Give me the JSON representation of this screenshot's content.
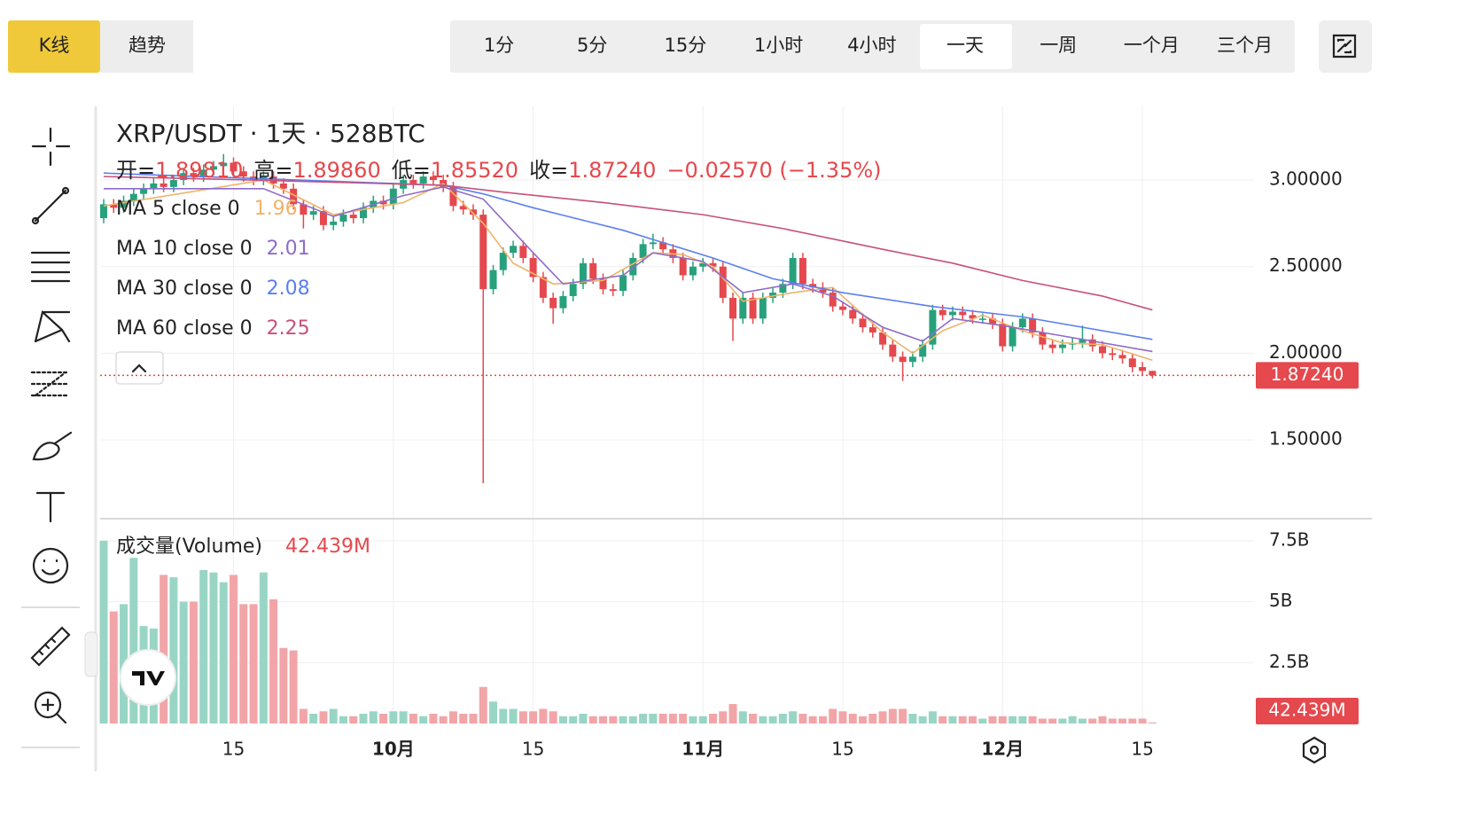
{
  "toolbar": {
    "tabs": [
      "K线",
      "趋势"
    ],
    "intervals": [
      "1分",
      "5分",
      "15分",
      "1小时",
      "4小时",
      "一天",
      "一周",
      "一个月",
      "三个月"
    ]
  },
  "chart_data": [
    {
      "type": "candlestick",
      "title": "XRP/USDT · 1天 · 528BTC",
      "stats": [
        {
          "name": "开=",
          "text": "1.89810"
        },
        {
          "name": "高=",
          "text": "1.89860"
        },
        {
          "name": "低=",
          "text": "1.85520"
        },
        {
          "name": "收=",
          "text": "1.87240"
        }
      ],
      "change": "−0.02570 (−1.35%)",
      "last_price": {
        "value": 1.8724,
        "label": "1.87240"
      },
      "up_color": "#27a17c",
      "down_color": "#e5484d",
      "categories": [
        null,
        null,
        null,
        null,
        null,
        null,
        null,
        null,
        null,
        null,
        null,
        null,
        null,
        "15",
        null,
        null,
        null,
        null,
        null,
        null,
        null,
        null,
        null,
        null,
        null,
        null,
        null,
        null,
        null,
        "10月",
        null,
        null,
        null,
        null,
        null,
        null,
        null,
        null,
        null,
        null,
        null,
        null,
        null,
        "15",
        null,
        null,
        null,
        null,
        null,
        null,
        null,
        null,
        null,
        null,
        null,
        null,
        null,
        null,
        null,
        null,
        "11月",
        null,
        null,
        null,
        null,
        null,
        null,
        null,
        null,
        null,
        null,
        null,
        null,
        null,
        "15",
        null,
        null,
        null,
        null,
        null,
        null,
        null,
        null,
        null,
        null,
        null,
        null,
        null,
        null,
        null,
        "12月",
        null,
        null,
        null,
        null,
        null,
        null,
        null,
        null,
        null,
        null,
        null,
        null,
        null,
        "15",
        null
      ],
      "open": [
        2.78,
        2.86,
        2.84,
        2.88,
        2.92,
        2.95,
        2.98,
        2.96,
        3.0,
        3.04,
        3.02,
        3.06,
        3.08,
        3.1,
        3.05,
        3.02,
        3.0,
        3.02,
        2.98,
        2.95,
        2.86,
        2.8,
        2.82,
        2.74,
        2.76,
        2.8,
        2.78,
        2.84,
        2.88,
        2.86,
        2.95,
        3.0,
        2.98,
        3.02,
        3.0,
        2.96,
        2.85,
        2.83,
        2.8,
        2.37,
        2.48,
        2.58,
        2.62,
        2.55,
        2.44,
        2.32,
        2.26,
        2.33,
        2.4,
        2.52,
        2.43,
        2.37,
        2.36,
        2.45,
        2.55,
        2.63,
        2.64,
        2.6,
        2.55,
        2.45,
        2.5,
        2.52,
        2.5,
        2.32,
        2.2,
        2.32,
        2.2,
        2.32,
        2.35,
        2.4,
        2.55,
        2.4,
        2.38,
        2.35,
        2.27,
        2.25,
        2.2,
        2.15,
        2.12,
        2.05,
        1.98,
        1.95,
        1.98,
        2.05,
        2.25,
        2.22,
        2.24,
        2.22,
        2.2,
        2.2,
        2.17,
        2.04,
        2.15,
        2.2,
        2.12,
        2.05,
        2.03,
        2.05,
        2.06,
        2.08,
        2.04,
        2.0,
        1.99,
        1.97,
        1.92,
        1.8981
      ],
      "high": [
        2.89,
        2.89,
        2.91,
        2.95,
        2.98,
        3.01,
        3.01,
        3.03,
        3.07,
        3.07,
        3.09,
        3.11,
        3.15,
        3.13,
        3.08,
        3.05,
        3.05,
        3.05,
        3.01,
        2.98,
        2.89,
        2.85,
        2.85,
        2.79,
        2.83,
        2.83,
        2.87,
        2.91,
        2.91,
        2.98,
        3.03,
        3.03,
        3.05,
        3.05,
        3.03,
        2.99,
        2.88,
        2.86,
        2.83,
        2.51,
        2.61,
        2.65,
        2.65,
        2.58,
        2.47,
        2.35,
        2.36,
        2.43,
        2.55,
        2.55,
        2.46,
        2.4,
        2.48,
        2.58,
        2.66,
        2.69,
        2.67,
        2.63,
        2.58,
        2.53,
        2.55,
        2.55,
        2.53,
        2.35,
        2.35,
        2.35,
        2.35,
        2.38,
        2.43,
        2.58,
        2.58,
        2.43,
        2.41,
        2.38,
        2.3,
        2.28,
        2.23,
        2.18,
        2.15,
        2.08,
        2.01,
        2.01,
        2.08,
        2.28,
        2.28,
        2.27,
        2.27,
        2.25,
        2.23,
        2.23,
        2.2,
        2.18,
        2.23,
        2.23,
        2.15,
        2.08,
        2.08,
        2.09,
        2.16,
        2.11,
        2.07,
        2.03,
        2.02,
        2.0,
        1.95,
        1.8986
      ],
      "low": [
        2.75,
        2.81,
        2.81,
        2.85,
        2.89,
        2.92,
        2.93,
        2.93,
        2.97,
        2.99,
        2.99,
        3.03,
        3.05,
        3.02,
        2.99,
        2.97,
        2.97,
        2.95,
        2.92,
        2.83,
        2.72,
        2.77,
        2.71,
        2.71,
        2.73,
        2.75,
        2.75,
        2.81,
        2.83,
        2.83,
        2.92,
        2.95,
        2.95,
        2.97,
        2.93,
        2.82,
        2.8,
        2.77,
        1.25,
        2.34,
        2.45,
        2.55,
        2.52,
        2.41,
        2.29,
        2.17,
        2.23,
        2.3,
        2.37,
        2.4,
        2.34,
        2.33,
        2.33,
        2.42,
        2.52,
        2.6,
        2.57,
        2.52,
        2.42,
        2.42,
        2.47,
        2.47,
        2.29,
        2.07,
        2.17,
        2.17,
        2.17,
        2.29,
        2.32,
        2.37,
        2.37,
        2.35,
        2.32,
        2.24,
        2.22,
        2.17,
        2.12,
        2.09,
        2.02,
        1.95,
        1.84,
        1.92,
        1.95,
        2.02,
        2.19,
        2.19,
        2.19,
        2.17,
        2.17,
        2.14,
        2.01,
        2.01,
        2.12,
        2.09,
        2.02,
        2.0,
        2.0,
        2.02,
        2.03,
        2.01,
        1.97,
        1.96,
        1.94,
        1.89,
        1.87,
        1.8552
      ],
      "close": [
        2.86,
        2.84,
        2.88,
        2.92,
        2.95,
        2.98,
        2.96,
        3.0,
        3.04,
        3.02,
        3.06,
        3.08,
        3.1,
        3.05,
        3.02,
        3.0,
        3.02,
        2.98,
        2.95,
        2.86,
        2.8,
        2.82,
        2.74,
        2.76,
        2.8,
        2.78,
        2.84,
        2.88,
        2.86,
        2.95,
        3.0,
        2.98,
        3.02,
        3.0,
        2.96,
        2.85,
        2.83,
        2.8,
        2.37,
        2.48,
        2.58,
        2.62,
        2.55,
        2.44,
        2.32,
        2.26,
        2.33,
        2.4,
        2.52,
        2.43,
        2.37,
        2.36,
        2.45,
        2.55,
        2.63,
        2.64,
        2.6,
        2.55,
        2.45,
        2.5,
        2.52,
        2.5,
        2.32,
        2.2,
        2.32,
        2.2,
        2.32,
        2.35,
        2.4,
        2.55,
        2.4,
        2.38,
        2.35,
        2.27,
        2.25,
        2.2,
        2.15,
        2.12,
        2.05,
        1.98,
        1.95,
        1.98,
        2.05,
        2.25,
        2.22,
        2.24,
        2.22,
        2.2,
        2.2,
        2.17,
        2.04,
        2.15,
        2.2,
        2.12,
        2.05,
        2.03,
        2.05,
        2.06,
        2.08,
        2.04,
        2.0,
        1.99,
        1.97,
        1.92,
        1.8981,
        1.8724
      ],
      "ma": [
        {
          "name": "MA 5 close 0",
          "last": 1.96,
          "color": "#f0b36a",
          "x": [
            0,
            16,
            23,
            30,
            34,
            38,
            41,
            45,
            50,
            55,
            58,
            61,
            64,
            69,
            73,
            78,
            81,
            84,
            88,
            92,
            96,
            100,
            105
          ],
          "values": [
            2.85,
            3.0,
            2.8,
            2.87,
            2.98,
            2.75,
            2.52,
            2.4,
            2.42,
            2.58,
            2.57,
            2.5,
            2.3,
            2.35,
            2.38,
            2.12,
            2.0,
            2.13,
            2.22,
            2.13,
            2.06,
            2.05,
            1.96
          ]
        },
        {
          "name": "MA 10 close 0",
          "last": 2.01,
          "color": "#8e6cc9",
          "x": [
            0,
            16,
            23,
            30,
            34,
            38,
            43,
            46,
            52,
            55,
            60,
            64,
            69,
            73,
            78,
            82,
            85,
            90,
            96,
            105
          ],
          "values": [
            2.95,
            2.95,
            2.79,
            2.91,
            2.96,
            2.89,
            2.58,
            2.4,
            2.45,
            2.58,
            2.53,
            2.35,
            2.4,
            2.33,
            2.15,
            2.07,
            2.2,
            2.16,
            2.1,
            2.01
          ]
        },
        {
          "name": "MA 30 close 0",
          "last": 2.08,
          "color": "#5b7ff0",
          "x": [
            0,
            34,
            38,
            43,
            52,
            61,
            67,
            74,
            83,
            92,
            105
          ],
          "values": [
            3.04,
            2.97,
            2.92,
            2.84,
            2.71,
            2.55,
            2.43,
            2.35,
            2.27,
            2.21,
            2.08
          ]
        },
        {
          "name": "MA 60 close 0",
          "last": 2.25,
          "color": "#c8507a",
          "x": [
            0,
            15,
            34,
            40,
            50,
            60,
            68,
            78,
            85,
            92,
            100,
            105
          ],
          "values": [
            3.02,
            3.0,
            2.97,
            2.93,
            2.87,
            2.8,
            2.72,
            2.6,
            2.52,
            2.42,
            2.33,
            2.25
          ]
        }
      ],
      "ylim": [
        1.045,
        3.425
      ],
      "yticks": [
        {
          "value": 1.5,
          "label": "1.50000"
        },
        {
          "value": 2,
          "label": "2.00000"
        },
        {
          "value": 2.5,
          "label": "2.50000"
        },
        {
          "value": 3,
          "label": "3.00000"
        }
      ],
      "grid": true
    },
    {
      "type": "bar",
      "title": "成交量(Volume)",
      "last": {
        "value": 0.042439,
        "label": "42.439M"
      },
      "up_color": "#99d5c5",
      "down_color": "#f2a5a8",
      "values": [
        7.5,
        4.6,
        4.9,
        6.8,
        4.0,
        3.9,
        6.1,
        6.0,
        5.0,
        5.0,
        6.3,
        6.2,
        5.8,
        6.1,
        4.9,
        4.9,
        6.2,
        5.1,
        3.1,
        3.0,
        0.6,
        0.4,
        0.5,
        0.6,
        0.3,
        0.3,
        0.4,
        0.5,
        0.4,
        0.5,
        0.5,
        0.4,
        0.3,
        0.4,
        0.3,
        0.5,
        0.4,
        0.4,
        1.5,
        0.9,
        0.6,
        0.6,
        0.5,
        0.5,
        0.6,
        0.5,
        0.3,
        0.3,
        0.4,
        0.3,
        0.3,
        0.3,
        0.3,
        0.3,
        0.4,
        0.4,
        0.4,
        0.4,
        0.4,
        0.3,
        0.3,
        0.4,
        0.5,
        0.8,
        0.5,
        0.4,
        0.3,
        0.3,
        0.4,
        0.5,
        0.4,
        0.3,
        0.3,
        0.6,
        0.5,
        0.4,
        0.3,
        0.4,
        0.5,
        0.6,
        0.6,
        0.4,
        0.3,
        0.5,
        0.3,
        0.3,
        0.3,
        0.3,
        0.2,
        0.3,
        0.3,
        0.3,
        0.3,
        0.3,
        0.2,
        0.2,
        0.2,
        0.3,
        0.2,
        0.2,
        0.3,
        0.2,
        0.2,
        0.2,
        0.2,
        0.042439
      ],
      "ylim": [
        0,
        8.37
      ],
      "yticks": [
        {
          "value": 2.5,
          "label": "2.5B"
        },
        {
          "value": 5,
          "label": "5B"
        },
        {
          "value": 7.5,
          "label": "7.5B"
        }
      ],
      "grid": true
    }
  ]
}
